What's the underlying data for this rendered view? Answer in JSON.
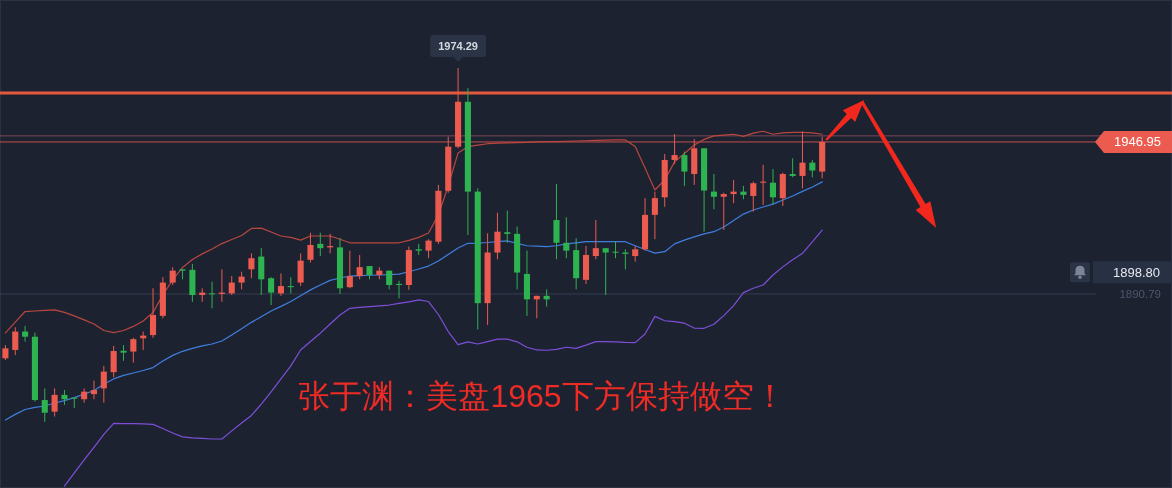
{
  "chart_data": {
    "type": "candlestick",
    "categories": [
      null,
      null,
      null,
      null,
      null,
      null,
      null,
      null,
      null,
      null,
      null,
      null,
      null,
      null,
      null,
      null,
      null,
      null,
      null,
      null,
      null,
      null,
      null,
      null,
      null,
      null,
      null,
      null,
      null,
      null,
      null,
      null,
      null,
      null,
      null,
      null,
      null,
      null,
      null,
      null,
      null,
      null,
      null,
      null,
      null,
      null,
      null,
      null,
      null,
      null,
      null,
      null,
      null,
      null,
      null,
      null,
      null,
      null,
      null,
      null,
      null,
      null,
      null,
      null,
      null,
      null,
      null,
      null,
      null,
      null,
      null,
      null,
      null,
      null,
      null,
      null,
      null,
      null,
      null,
      null,
      null,
      null,
      null,
      null
    ],
    "ohlc": [
      [
        1867.0,
        1871.9,
        1866.4,
        1870.7
      ],
      [
        1870.1,
        1878.5,
        1868.2,
        1876.9
      ],
      [
        1876.9,
        1879.0,
        1873.2,
        1875.0
      ],
      [
        1875.0,
        1876.5,
        1851.0,
        1851.6
      ],
      [
        1851.6,
        1855.9,
        1843.6,
        1846.9
      ],
      [
        1847.3,
        1855.9,
        1845.5,
        1853.5
      ],
      [
        1853.5,
        1855.3,
        1849.8,
        1851.9
      ],
      [
        1852.5,
        1852.5,
        1848.6,
        1852.1
      ],
      [
        1851.9,
        1855.9,
        1850.6,
        1854.7
      ],
      [
        1853.8,
        1858.8,
        1851.9,
        1855.3
      ],
      [
        1855.9,
        1864.2,
        1850.6,
        1862.1
      ],
      [
        1861.9,
        1871.6,
        1860.0,
        1869.7
      ],
      [
        1869.8,
        1871.9,
        1866.1,
        1869.1
      ],
      [
        1869.5,
        1874.6,
        1865.4,
        1874.1
      ],
      [
        1874.4,
        1876.9,
        1870.1,
        1875.4
      ],
      [
        1875.6,
        1892.9,
        1874.6,
        1883.0
      ],
      [
        1882.7,
        1897.0,
        1881.8,
        1895.0
      ],
      [
        1895.0,
        1900.7,
        1894.1,
        1899.4
      ],
      [
        1899.9,
        1899.9,
        1896.2,
        1899.4
      ],
      [
        1899.7,
        1901.9,
        1887.9,
        1890.4
      ],
      [
        1890.4,
        1892.9,
        1887.9,
        1891.3
      ],
      [
        1891.0,
        1895.3,
        1885.5,
        1890.7
      ],
      [
        1890.8,
        1899.9,
        1887.9,
        1891.3
      ],
      [
        1891.0,
        1897.4,
        1890.4,
        1895.0
      ],
      [
        1895.0,
        1899.0,
        1892.5,
        1897.2
      ],
      [
        1899.9,
        1905.8,
        1896.6,
        1904.0
      ],
      [
        1904.6,
        1907.7,
        1890.4,
        1896.2
      ],
      [
        1896.6,
        1897.0,
        1886.7,
        1891.3
      ],
      [
        1891.0,
        1898.4,
        1890.1,
        1893.7
      ],
      [
        1893.7,
        1897.0,
        1891.0,
        1893.3
      ],
      [
        1895.0,
        1905.8,
        1893.7,
        1903.1
      ],
      [
        1903.4,
        1913.4,
        1902.4,
        1908.9
      ],
      [
        1909.3,
        1913.4,
        1904.8,
        1907.7
      ],
      [
        1908.0,
        1913.0,
        1905.8,
        1908.5
      ],
      [
        1908.0,
        1911.4,
        1890.8,
        1892.9
      ],
      [
        1893.3,
        1906.8,
        1892.9,
        1897.4
      ],
      [
        1897.4,
        1905.2,
        1896.2,
        1900.7
      ],
      [
        1901.1,
        1901.1,
        1896.2,
        1897.8
      ],
      [
        1897.8,
        1900.7,
        1896.2,
        1899.4
      ],
      [
        1899.4,
        1899.4,
        1892.5,
        1894.1
      ],
      [
        1894.5,
        1895.7,
        1889.2,
        1894.1
      ],
      [
        1894.1,
        1908.3,
        1892.3,
        1907.0
      ],
      [
        1907.3,
        1909.3,
        1905.2,
        1906.8
      ],
      [
        1906.8,
        1911.0,
        1904.0,
        1910.5
      ],
      [
        1910.1,
        1931.1,
        1909.3,
        1928.9
      ],
      [
        1928.9,
        1948.9,
        1928.2,
        1945.2
      ],
      [
        1945.2,
        1974.29,
        1944.6,
        1961.8
      ],
      [
        1961.8,
        1966.8,
        1912.6,
        1928.6
      ],
      [
        1928.6,
        1929.8,
        1877.7,
        1887.4
      ],
      [
        1887.4,
        1913.2,
        1879.3,
        1906.1
      ],
      [
        1906.1,
        1920.8,
        1903.6,
        1913.8
      ],
      [
        1913.6,
        1921.6,
        1909.7,
        1913.0
      ],
      [
        1913.0,
        1915.7,
        1892.5,
        1898.7
      ],
      [
        1898.2,
        1906.8,
        1882.7,
        1888.8
      ],
      [
        1888.8,
        1890.1,
        1881.8,
        1890.1
      ],
      [
        1890.1,
        1892.5,
        1886.1,
        1888.8
      ],
      [
        1918.1,
        1931.4,
        1903.6,
        1909.7
      ],
      [
        1909.7,
        1919.1,
        1904.0,
        1906.8
      ],
      [
        1907.0,
        1911.4,
        1892.5,
        1896.6
      ],
      [
        1896.0,
        1908.5,
        1894.5,
        1905.2
      ],
      [
        1904.8,
        1918.1,
        1903.6,
        1907.7
      ],
      [
        1907.7,
        1907.7,
        1890.4,
        1906.1
      ],
      [
        1906.4,
        1910.1,
        1904.0,
        1906.1
      ],
      [
        1906.1,
        1907.3,
        1899.9,
        1905.6
      ],
      [
        1904.8,
        1908.5,
        1902.7,
        1907.3
      ],
      [
        1907.3,
        1926.2,
        1906.8,
        1920.0
      ],
      [
        1920.0,
        1928.6,
        1911.0,
        1926.2
      ],
      [
        1926.5,
        1942.5,
        1923.0,
        1940.3
      ],
      [
        1940.3,
        1949.9,
        1938.8,
        1942.1
      ],
      [
        1942.1,
        1943.4,
        1930.7,
        1936.0
      ],
      [
        1935.1,
        1948.0,
        1931.1,
        1944.6
      ],
      [
        1944.6,
        1944.6,
        1913.8,
        1929.0
      ],
      [
        1928.6,
        1935.1,
        1922.1,
        1926.7
      ],
      [
        1926.7,
        1928.2,
        1914.4,
        1927.7
      ],
      [
        1927.7,
        1932.9,
        1924.3,
        1928.6
      ],
      [
        1928.6,
        1930.7,
        1925.8,
        1927.4
      ],
      [
        1927.0,
        1932.3,
        1921.2,
        1931.7
      ],
      [
        1931.9,
        1938.5,
        1923.7,
        1932.3
      ],
      [
        1931.9,
        1936.9,
        1924.0,
        1926.5
      ],
      [
        1926.2,
        1935.6,
        1923.3,
        1935.1
      ],
      [
        1935.1,
        1940.9,
        1933.9,
        1934.4
      ],
      [
        1934.4,
        1950.8,
        1929.8,
        1939.3
      ],
      [
        1939.3,
        1940.3,
        1933.9,
        1936.4
      ],
      [
        1936.0,
        1948.9,
        1933.5,
        1946.95
      ]
    ],
    "colors": [
      "#eb5b4f",
      "#eb5b4f",
      "#2db34f",
      "#2db34f",
      "#2db34f",
      "#eb5b4f",
      "#2db34f",
      "#2db34f",
      "#eb5b4f",
      "#eb5b4f",
      "#eb5b4f",
      "#eb5b4f",
      "#2db34f",
      "#eb5b4f",
      "#eb5b4f",
      "#eb5b4f",
      "#eb5b4f",
      "#eb5b4f",
      "#2db34f",
      "#2db34f",
      "#eb5b4f",
      "#2db34f",
      "#eb5b4f",
      "#eb5b4f",
      "#eb5b4f",
      "#eb5b4f",
      "#2db34f",
      "#2db34f",
      "#eb5b4f",
      "#2db34f",
      "#eb5b4f",
      "#eb5b4f",
      "#2db34f",
      "#eb5b4f",
      "#2db34f",
      "#eb5b4f",
      "#eb5b4f",
      "#2db34f",
      "#eb5b4f",
      "#2db34f",
      "#2db34f",
      "#eb5b4f",
      "#2db34f",
      "#eb5b4f",
      "#eb5b4f",
      "#eb5b4f",
      "#eb5b4f",
      "#2db34f",
      "#2db34f",
      "#eb5b4f",
      "#eb5b4f",
      "#2db34f",
      "#2db34f",
      "#2db34f",
      "#eb5b4f",
      "#2db34f",
      "#2db34f",
      "#2db34f",
      "#2db34f",
      "#eb5b4f",
      "#eb5b4f",
      "#2db34f",
      "#2db34f",
      "#2db34f",
      "#eb5b4f",
      "#eb5b4f",
      "#eb5b4f",
      "#eb5b4f",
      "#eb5b4f",
      "#2db34f",
      "#eb5b4f",
      "#2db34f",
      "#2db34f",
      "#eb5b4f",
      "#eb5b4f",
      "#2db34f",
      "#eb5b4f",
      "#eb5b4f",
      "#2db34f",
      "#eb5b4f",
      "#2db34f",
      "#eb5b4f",
      "#2db34f",
      "#eb5b4f"
    ],
    "series": [
      {
        "type": "line",
        "color": "#b9473f",
        "values": [
          1876.4,
          1880.4,
          1884.3,
          1884.5,
          1884.7,
          1884.9,
          1884.0,
          1882.7,
          1881.2,
          1879.7,
          1877.3,
          1876.5,
          1877.3,
          1878.8,
          1880.8,
          1884.0,
          1890.4,
          1896.0,
          1900.6,
          1903.5,
          1905.6,
          1907.4,
          1909.4,
          1910.9,
          1912.4,
          1915.0,
          1915.1,
          1913.7,
          1912.2,
          1911.7,
          1910.7,
          1912.2,
          1912.2,
          1912.2,
          1911.0,
          1909.7,
          1909.7,
          1909.7,
          1909.7,
          1909.7,
          1909.7,
          1910.6,
          1911.7,
          1913.3,
          1920.0,
          1930.7,
          1942.9,
          1945.2,
          1945.8,
          1946.3,
          1946.5,
          1946.6,
          1946.7,
          1946.8,
          1947.0,
          1947.1,
          1947.1,
          1947.2,
          1947.3,
          1947.4,
          1947.5,
          1947.6,
          1947.7,
          1947.7,
          1945.3,
          1937.3,
          1929.2,
          1932.9,
          1939.6,
          1942.7,
          1945.8,
          1947.9,
          1949.2,
          1949.5,
          1949.8,
          1949.0,
          1950.2,
          1950.9,
          1949.8,
          1950.3,
          1950.5,
          1950.5,
          1950.3,
          1949.8
        ]
      },
      {
        "type": "line",
        "color": "#3f7fe0",
        "values": [
          1844.2,
          1846.3,
          1848.1,
          1848.9,
          1849.4,
          1850.5,
          1851.4,
          1852.5,
          1853.8,
          1855.1,
          1857.4,
          1859.4,
          1860.7,
          1861.6,
          1862.5,
          1863.6,
          1866.0,
          1868.1,
          1869.6,
          1870.7,
          1871.6,
          1872.3,
          1873.4,
          1875.6,
          1877.9,
          1880.3,
          1882.4,
          1884.5,
          1886.2,
          1888.0,
          1890.1,
          1892.3,
          1894.1,
          1895.8,
          1896.7,
          1897.4,
          1897.6,
          1897.7,
          1897.8,
          1897.9,
          1898.1,
          1899.0,
          1900.0,
          1901.1,
          1903.0,
          1905.4,
          1907.8,
          1909.5,
          1909.6,
          1909.8,
          1910.1,
          1910.4,
          1909.5,
          1908.6,
          1908.5,
          1908.3,
          1908.6,
          1909.3,
          1909.7,
          1910.1,
          1910.1,
          1910.1,
          1910.1,
          1910.1,
          1908.6,
          1907.2,
          1905.9,
          1906.4,
          1909.3,
          1910.7,
          1911.9,
          1913.0,
          1913.8,
          1915.5,
          1917.9,
          1920.3,
          1921.8,
          1922.9,
          1924.0,
          1925.5,
          1927.0,
          1928.7,
          1930.3,
          1932.2
        ]
      },
      {
        "type": "line",
        "color": "#7d4fd8",
        "values": [
          null,
          null,
          null,
          null,
          null,
          null,
          1819.8,
          1824.7,
          1829.5,
          1834.1,
          1838.9,
          1843.0,
          1842.9,
          1842.9,
          1842.8,
          1842.6,
          1841.1,
          1839.4,
          1838.0,
          1837.6,
          1837.4,
          1837.2,
          1837.2,
          1840.2,
          1843.1,
          1845.9,
          1850.1,
          1854.6,
          1859.4,
          1864.2,
          1870.1,
          1873.2,
          1876.3,
          1879.7,
          1883.0,
          1885.5,
          1885.8,
          1886.1,
          1886.4,
          1886.7,
          1887.3,
          1887.9,
          1888.6,
          1888.0,
          1883.2,
          1876.9,
          1872.1,
          1873.1,
          1872.3,
          1873.2,
          1874.1,
          1874.1,
          1873.1,
          1871.1,
          1870.1,
          1870.0,
          1870.3,
          1871.1,
          1870.7,
          1871.9,
          1873.2,
          1873.2,
          1873.1,
          1872.9,
          1872.8,
          1876.0,
          1882.5,
          1880.9,
          1880.6,
          1880.0,
          1878.2,
          1878.1,
          1879.6,
          1882.8,
          1886.5,
          1891.3,
          1892.9,
          1894.1,
          1897.8,
          1900.8,
          1903.4,
          1905.8,
          1910.0,
          1914.4
        ]
      }
    ],
    "ylim": [
      1819.1,
      1999.4
    ],
    "yticks": [
      1946.95,
      {
        "value": 1898.8,
        "label": "1898.80"
      },
      1890.79
    ],
    "tick_labels": "y",
    "ref_lines": [
      {
        "axis": "y",
        "value": 1965,
        "color": "#e4583e"
      },
      {
        "axis": "y",
        "value": 1949.2,
        "color": "#7e4656"
      },
      {
        "axis": "y",
        "value": 1946.95,
        "color": "#c0504d"
      },
      {
        "axis": "y",
        "value": 1890.79,
        "color": "#353d50"
      }
    ],
    "annotations": [
      {
        "text": "1974.29",
        "y": 1974.29
      },
      "张于渊：美盘1965下方保持做空！"
    ]
  }
}
